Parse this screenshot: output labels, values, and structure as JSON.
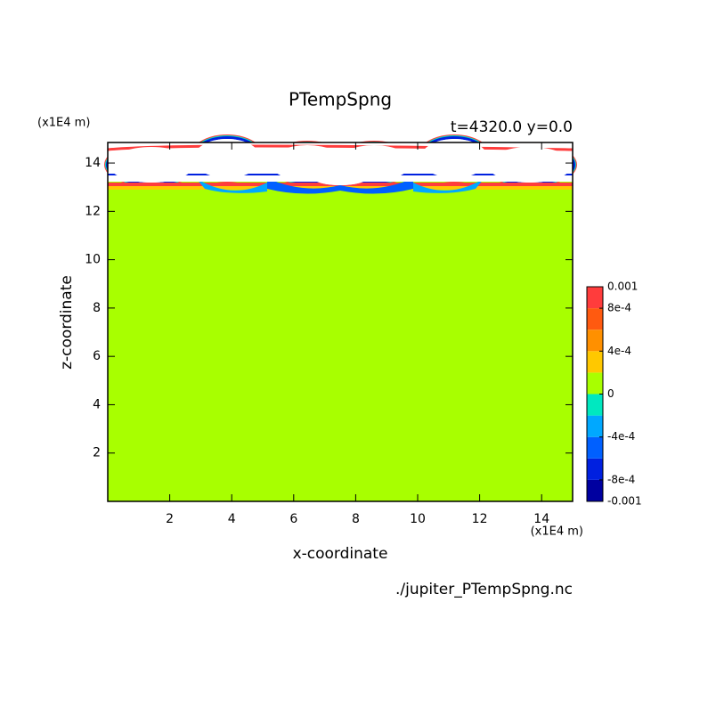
{
  "chart_data": {
    "type": "contour",
    "title": "PTempSpng",
    "subtitle": "t=4320.0 y=0.0",
    "x_label": "x-coordinate",
    "y_label": "z-coordinate",
    "x_unit": "(x1E4 m)",
    "y_unit": "(x1E4 m)",
    "source": "./jupiter_PTempSpng.nc",
    "xlim": [
      0,
      15
    ],
    "ylim": [
      0,
      14.85
    ],
    "xticks": [
      2,
      4,
      6,
      8,
      10,
      12,
      14
    ],
    "yticks": [
      2,
      4,
      6,
      8,
      10,
      12,
      14
    ],
    "colorbar": {
      "levels": [
        -0.001,
        -0.0008,
        -0.0006,
        -0.0004,
        -0.0002,
        0,
        0.0002,
        0.0004,
        0.0006,
        0.0008,
        0.001
      ],
      "colors": [
        "#0000a0",
        "#0020e0",
        "#0060ff",
        "#00a8ff",
        "#00e8c0",
        "#a8ff00",
        "#ffc800",
        "#ff9000",
        "#ff5a10",
        "#ff3c3c"
      ],
      "ticks": [
        -0.001,
        {
          "value": -0.0008,
          "label": "-8e-4"
        },
        {
          "value": -0.0004,
          "label": "-4e-4"
        },
        0,
        {
          "value": 0.0004,
          "label": "4e-4"
        },
        {
          "value": 0.0008,
          "label": "8e-4"
        },
        0.001
      ]
    }
  }
}
